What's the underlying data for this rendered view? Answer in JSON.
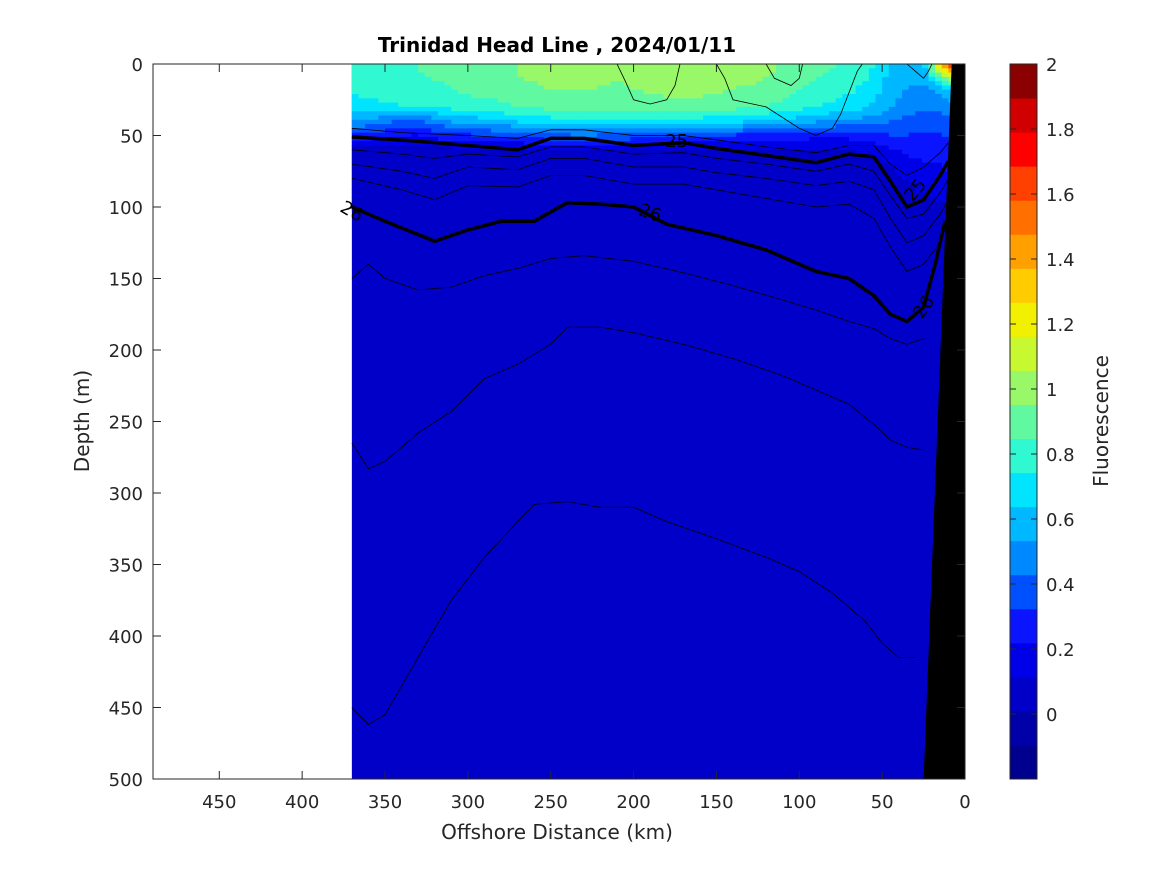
{
  "chart_data": {
    "type": "heatmap",
    "title": "Trinidad Head Line , 2024/01/11",
    "xlabel": "Offshore Distance (km)",
    "ylabel": "Depth (m)",
    "colorbar_label": "Fluorescence",
    "xlim": [
      490,
      0
    ],
    "ylim": [
      0,
      500
    ],
    "x_reversed": true,
    "y_reversed": true,
    "xticks": [
      "450",
      "400",
      "350",
      "300",
      "250",
      "200",
      "150",
      "100",
      "50",
      "0"
    ],
    "yticks": [
      "0",
      "50",
      "100",
      "150",
      "200",
      "250",
      "300",
      "350",
      "400",
      "450",
      "500"
    ],
    "data_extent_km": [
      370,
      0
    ],
    "colorbar": {
      "range": [
        -0.2,
        2.0
      ],
      "ticks": [
        "0",
        "0.2",
        "0.4",
        "0.6",
        "0.8",
        "1",
        "1.2",
        "1.4",
        "1.6",
        "1.8",
        "2"
      ],
      "colors": [
        "#00008f",
        "#0000a8",
        "#0000c8",
        "#0000e8",
        "#0a14ff",
        "#0050ff",
        "#0088ff",
        "#00b8ff",
        "#00e4ff",
        "#30f8d0",
        "#60f8a0",
        "#98f868",
        "#c8f830",
        "#f0f000",
        "#ffcc00",
        "#ffa000",
        "#ff7000",
        "#ff4000",
        "#ff0000",
        "#d00000",
        "#8b0000"
      ]
    },
    "fluorescence_field": {
      "x_km": [
        370,
        350,
        330,
        310,
        290,
        270,
        250,
        230,
        210,
        190,
        170,
        150,
        130,
        110,
        90,
        70,
        55,
        45,
        35,
        25,
        15,
        8
      ],
      "depth_m": [
        0,
        10,
        20,
        30,
        40,
        50,
        60,
        70,
        80,
        90,
        100
      ],
      "values": [
        [
          0.8,
          0.82,
          0.85,
          0.88,
          0.92,
          0.95,
          1.0,
          1.0,
          0.98,
          1.0,
          1.02,
          1.0,
          1.0,
          0.95,
          0.9,
          0.82,
          0.75,
          0.6,
          0.55,
          0.6,
          1.4,
          1.8
        ],
        [
          0.78,
          0.8,
          0.84,
          0.86,
          0.9,
          0.95,
          0.98,
          0.98,
          0.96,
          1.0,
          1.02,
          1.0,
          0.98,
          0.92,
          0.85,
          0.8,
          0.72,
          0.6,
          0.55,
          0.55,
          0.8,
          1.0
        ],
        [
          0.75,
          0.78,
          0.82,
          0.84,
          0.88,
          0.9,
          0.95,
          0.95,
          0.92,
          0.96,
          0.98,
          0.96,
          0.92,
          0.88,
          0.8,
          0.75,
          0.68,
          0.58,
          0.52,
          0.5,
          0.55,
          0.6
        ],
        [
          0.7,
          0.72,
          0.75,
          0.78,
          0.8,
          0.85,
          0.88,
          0.9,
          0.88,
          0.9,
          0.92,
          0.9,
          0.86,
          0.82,
          0.75,
          0.7,
          0.62,
          0.55,
          0.48,
          0.45,
          0.45,
          0.5
        ],
        [
          0.55,
          0.45,
          0.4,
          0.55,
          0.6,
          0.65,
          0.7,
          0.72,
          0.7,
          0.72,
          0.7,
          0.68,
          0.65,
          0.6,
          0.55,
          0.5,
          0.48,
          0.42,
          0.4,
          0.38,
          0.38,
          0.4
        ],
        [
          0.3,
          0.25,
          0.2,
          0.3,
          0.32,
          0.35,
          0.4,
          0.42,
          0.4,
          0.38,
          0.35,
          0.32,
          0.3,
          0.28,
          0.25,
          0.25,
          0.3,
          0.32,
          0.32,
          0.3,
          0.3,
          0.35
        ],
        [
          0.08,
          0.06,
          0.05,
          0.08,
          0.1,
          0.1,
          0.12,
          0.12,
          0.12,
          0.12,
          0.1,
          0.1,
          0.1,
          0.1,
          0.1,
          0.12,
          0.15,
          0.2,
          0.25,
          0.25,
          0.25,
          0.3
        ],
        [
          0.02,
          0.02,
          0.02,
          0.02,
          0.03,
          0.03,
          0.04,
          0.04,
          0.04,
          0.04,
          0.04,
          0.04,
          0.04,
          0.04,
          0.04,
          0.05,
          0.08,
          0.12,
          0.18,
          0.22,
          0.22,
          0.25
        ],
        [
          0.01,
          0.01,
          0.01,
          0.01,
          0.01,
          0.01,
          0.02,
          0.02,
          0.02,
          0.02,
          0.02,
          0.02,
          0.02,
          0.02,
          0.02,
          0.03,
          0.05,
          0.08,
          0.12,
          0.18,
          0.2,
          0.22
        ],
        [
          0.01,
          0.01,
          0.01,
          0.01,
          0.01,
          0.01,
          0.01,
          0.01,
          0.01,
          0.01,
          0.01,
          0.01,
          0.01,
          0.01,
          0.01,
          0.02,
          0.03,
          0.05,
          0.08,
          0.12,
          0.15,
          0.18
        ],
        [
          0.01,
          0.01,
          0.01,
          0.01,
          0.01,
          0.01,
          0.01,
          0.01,
          0.01,
          0.01,
          0.01,
          0.01,
          0.01,
          0.01,
          0.01,
          0.01,
          0.02,
          0.03,
          0.04,
          0.06,
          0.08,
          0.1
        ]
      ],
      "deep_value": 0.01
    },
    "density_contours": [
      {
        "label": "25",
        "bold": true,
        "points": [
          [
            370,
            51
          ],
          [
            330,
            54
          ],
          [
            300,
            57
          ],
          [
            270,
            60
          ],
          [
            250,
            52
          ],
          [
            230,
            52
          ],
          [
            200,
            57
          ],
          [
            170,
            55
          ],
          [
            150,
            59
          ],
          [
            120,
            64
          ],
          [
            90,
            69
          ],
          [
            70,
            63
          ],
          [
            55,
            65
          ],
          [
            45,
            82
          ],
          [
            35,
            100
          ],
          [
            25,
            95
          ],
          [
            15,
            78
          ],
          [
            10,
            68
          ]
        ]
      },
      {
        "label": "26",
        "bold": true,
        "points": [
          [
            370,
            100
          ],
          [
            350,
            110
          ],
          [
            320,
            124
          ],
          [
            300,
            116
          ],
          [
            280,
            110
          ],
          [
            260,
            110
          ],
          [
            240,
            97
          ],
          [
            220,
            98
          ],
          [
            200,
            100
          ],
          [
            180,
            112
          ],
          [
            150,
            120
          ],
          [
            120,
            130
          ],
          [
            90,
            145
          ],
          [
            70,
            150
          ],
          [
            55,
            162
          ],
          [
            45,
            175
          ],
          [
            35,
            180
          ],
          [
            25,
            170
          ],
          [
            18,
            140
          ],
          [
            12,
            110
          ]
        ]
      },
      {
        "label": "",
        "bold": false,
        "points": [
          [
            370,
            45
          ],
          [
            340,
            48
          ],
          [
            300,
            50
          ],
          [
            270,
            52
          ],
          [
            250,
            46
          ],
          [
            230,
            46
          ],
          [
            200,
            50
          ],
          [
            170,
            50
          ],
          [
            150,
            53
          ],
          [
            120,
            58
          ],
          [
            90,
            62
          ],
          [
            70,
            57
          ],
          [
            55,
            57
          ],
          [
            45,
            70
          ],
          [
            35,
            78
          ],
          [
            25,
            72
          ],
          [
            15,
            62
          ],
          [
            10,
            55
          ]
        ]
      },
      {
        "label": "",
        "bold": false,
        "points": [
          [
            370,
            60
          ],
          [
            340,
            63
          ],
          [
            320,
            66
          ],
          [
            300,
            63
          ],
          [
            270,
            65
          ],
          [
            250,
            58
          ],
          [
            230,
            58
          ],
          [
            200,
            63
          ],
          [
            170,
            62
          ],
          [
            150,
            66
          ],
          [
            120,
            70
          ],
          [
            90,
            75
          ],
          [
            70,
            70
          ],
          [
            55,
            75
          ],
          [
            45,
            92
          ],
          [
            35,
            108
          ],
          [
            25,
            105
          ],
          [
            15,
            90
          ],
          [
            10,
            80
          ]
        ]
      },
      {
        "label": "",
        "bold": false,
        "points": [
          [
            370,
            70
          ],
          [
            340,
            75
          ],
          [
            320,
            80
          ],
          [
            300,
            72
          ],
          [
            270,
            74
          ],
          [
            250,
            66
          ],
          [
            230,
            66
          ],
          [
            200,
            72
          ],
          [
            170,
            72
          ],
          [
            150,
            76
          ],
          [
            120,
            80
          ],
          [
            90,
            85
          ],
          [
            70,
            82
          ],
          [
            55,
            88
          ],
          [
            45,
            108
          ],
          [
            35,
            125
          ],
          [
            25,
            120
          ],
          [
            15,
            105
          ],
          [
            10,
            95
          ]
        ]
      },
      {
        "label": "",
        "bold": false,
        "points": [
          [
            370,
            80
          ],
          [
            340,
            88
          ],
          [
            320,
            95
          ],
          [
            300,
            85
          ],
          [
            270,
            86
          ],
          [
            250,
            78
          ],
          [
            230,
            78
          ],
          [
            200,
            84
          ],
          [
            170,
            84
          ],
          [
            150,
            88
          ],
          [
            120,
            94
          ],
          [
            90,
            100
          ],
          [
            70,
            98
          ],
          [
            55,
            108
          ],
          [
            45,
            128
          ],
          [
            35,
            145
          ],
          [
            25,
            140
          ],
          [
            15,
            125
          ]
        ]
      },
      {
        "label": "",
        "bold": false,
        "points": [
          [
            370,
            150
          ],
          [
            360,
            140
          ],
          [
            350,
            150
          ],
          [
            330,
            158
          ],
          [
            310,
            156
          ],
          [
            290,
            148
          ],
          [
            270,
            143
          ],
          [
            250,
            136
          ],
          [
            230,
            134
          ],
          [
            200,
            138
          ],
          [
            170,
            146
          ],
          [
            140,
            155
          ],
          [
            110,
            165
          ],
          [
            90,
            172
          ],
          [
            70,
            180
          ],
          [
            55,
            185
          ],
          [
            45,
            192
          ],
          [
            35,
            196
          ],
          [
            25,
            192
          ]
        ]
      },
      {
        "label": "",
        "bold": false,
        "points": [
          [
            370,
            265
          ],
          [
            360,
            283
          ],
          [
            350,
            278
          ],
          [
            330,
            258
          ],
          [
            310,
            243
          ],
          [
            290,
            220
          ],
          [
            270,
            210
          ],
          [
            250,
            196
          ],
          [
            240,
            184
          ],
          [
            220,
            184
          ],
          [
            200,
            188
          ],
          [
            170,
            196
          ],
          [
            140,
            206
          ],
          [
            110,
            218
          ],
          [
            90,
            228
          ],
          [
            70,
            238
          ],
          [
            55,
            252
          ],
          [
            45,
            263
          ],
          [
            35,
            268
          ],
          [
            25,
            270
          ]
        ]
      },
      {
        "label": "",
        "bold": false,
        "points": [
          [
            370,
            450
          ],
          [
            360,
            462
          ],
          [
            350,
            455
          ],
          [
            330,
            415
          ],
          [
            310,
            375
          ],
          [
            290,
            345
          ],
          [
            270,
            320
          ],
          [
            260,
            308
          ],
          [
            240,
            306
          ],
          [
            220,
            310
          ],
          [
            200,
            310
          ],
          [
            180,
            320
          ],
          [
            150,
            332
          ],
          [
            120,
            345
          ],
          [
            100,
            355
          ],
          [
            80,
            370
          ],
          [
            60,
            390
          ],
          [
            50,
            405
          ],
          [
            40,
            415
          ],
          [
            30,
            415
          ]
        ]
      }
    ],
    "thin_surface_contours": [
      {
        "points": [
          [
            210,
            0
          ],
          [
            205,
            12
          ],
          [
            200,
            25
          ],
          [
            190,
            28
          ],
          [
            180,
            25
          ],
          [
            175,
            15
          ],
          [
            172,
            0
          ]
        ]
      },
      {
        "points": [
          [
            150,
            0
          ],
          [
            145,
            10
          ],
          [
            140,
            25
          ],
          [
            120,
            30
          ],
          [
            100,
            45
          ],
          [
            90,
            50
          ],
          [
            80,
            45
          ],
          [
            75,
            35
          ],
          [
            70,
            20
          ],
          [
            65,
            5
          ],
          [
            62,
            0
          ]
        ]
      },
      {
        "points": [
          [
            120,
            0
          ],
          [
            115,
            10
          ],
          [
            105,
            15
          ],
          [
            100,
            10
          ],
          [
            98,
            0
          ]
        ]
      },
      {
        "points": [
          [
            35,
            0
          ],
          [
            30,
            5
          ],
          [
            25,
            10
          ],
          [
            22,
            5
          ],
          [
            20,
            0
          ]
        ]
      }
    ],
    "bathymetry_polygon": [
      [
        8,
        0
      ],
      [
        0,
        0
      ],
      [
        0,
        500
      ],
      [
        25,
        500
      ]
    ]
  }
}
